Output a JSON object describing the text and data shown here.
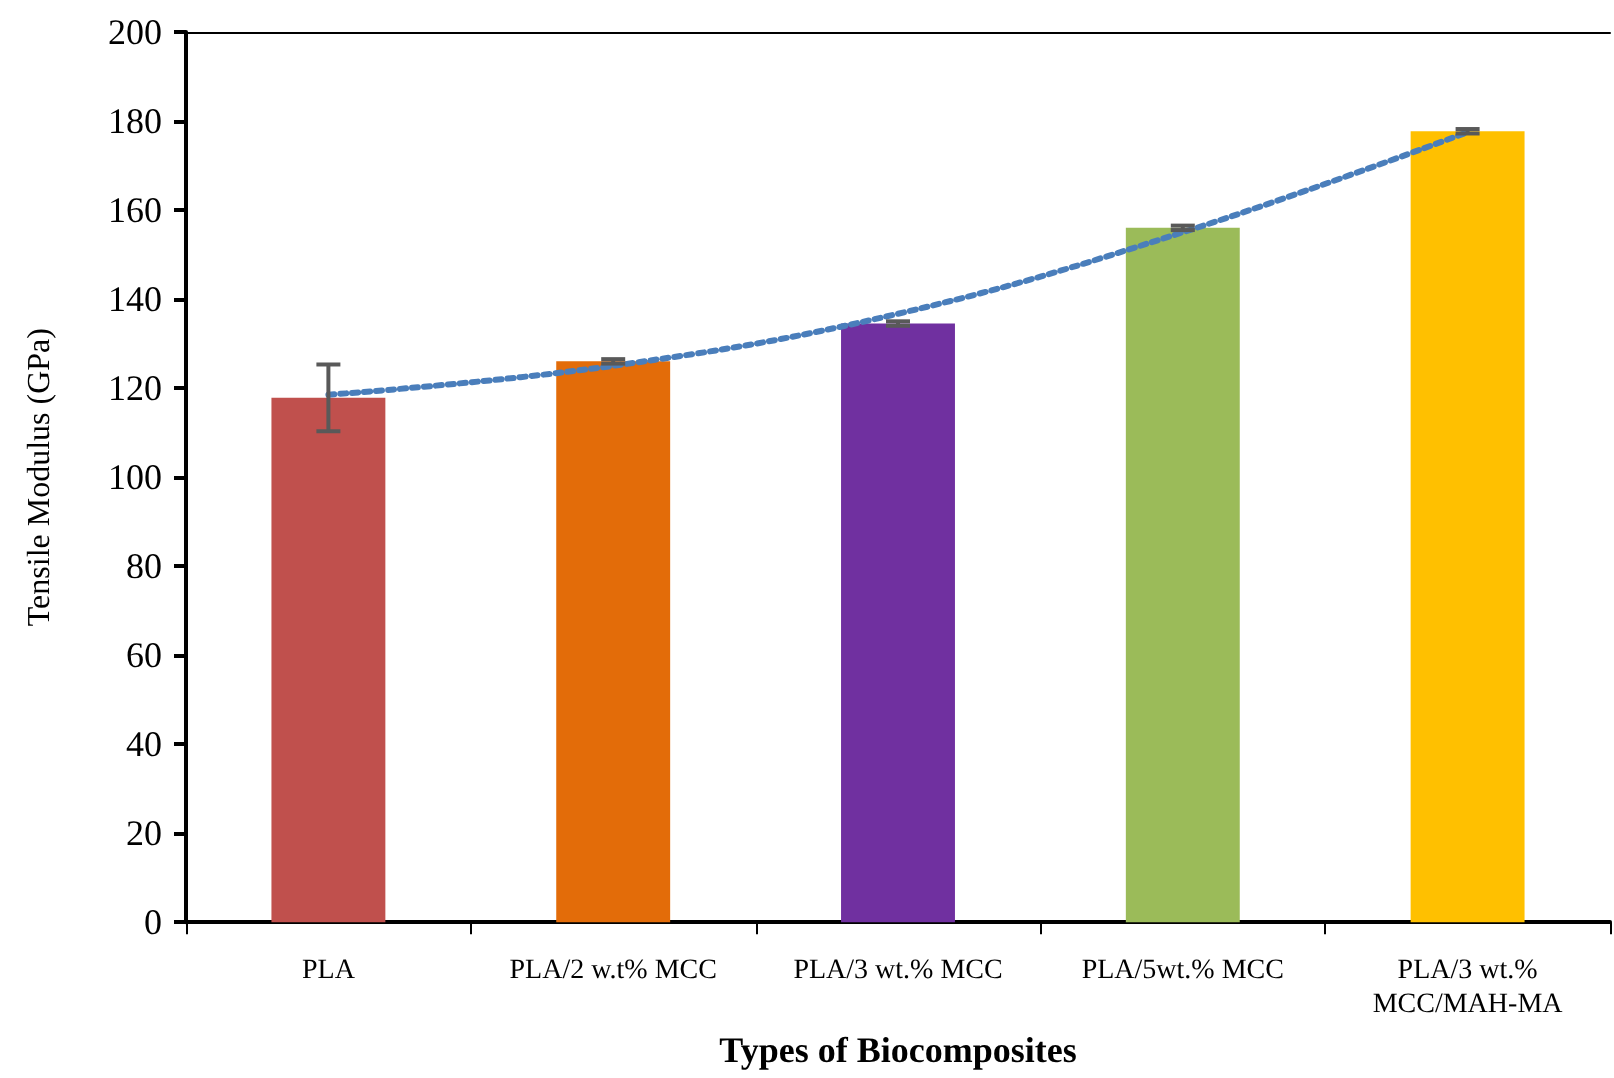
{
  "chart_data": {
    "type": "bar",
    "xlabel": "Types of Biocomposites",
    "ylabel": "Tensile Modulus (GPa)",
    "categories": [
      "PLA",
      "PLA/2 w.t% MCC",
      "PLA/3 wt.% MCC",
      "PLA/5wt.% MCC",
      "PLA/3 wt.%\nMCC/MAH-MA"
    ],
    "series": [
      {
        "colors": [
          "#c0504d",
          "#e36c09",
          "#7030a0",
          "#9bbb59",
          "#ffc000"
        ],
        "values": [
          117.8,
          126,
          134.5,
          156,
          177.7
        ],
        "errors": [
          7.5,
          0.5,
          0.5,
          0.5,
          0.5
        ]
      },
      {
        "type": "line",
        "color": "#4a7ebb",
        "line_style": "dotted",
        "marker": "none",
        "x": [
          "PLA",
          "PLA/2 w.t% MCC",
          "PLA/3 wt.% MCC",
          "PLA/5wt.% MCC",
          "PLA/3 wt.%\nMCC/MAH-MA"
        ],
        "values": [
          118.5,
          125,
          136.7,
          155,
          177.5
        ]
      }
    ],
    "ylim": [
      0,
      200
    ],
    "yticks": [
      0,
      20,
      40,
      60,
      80,
      100,
      120,
      140,
      160,
      180,
      200
    ],
    "grid": false
  }
}
